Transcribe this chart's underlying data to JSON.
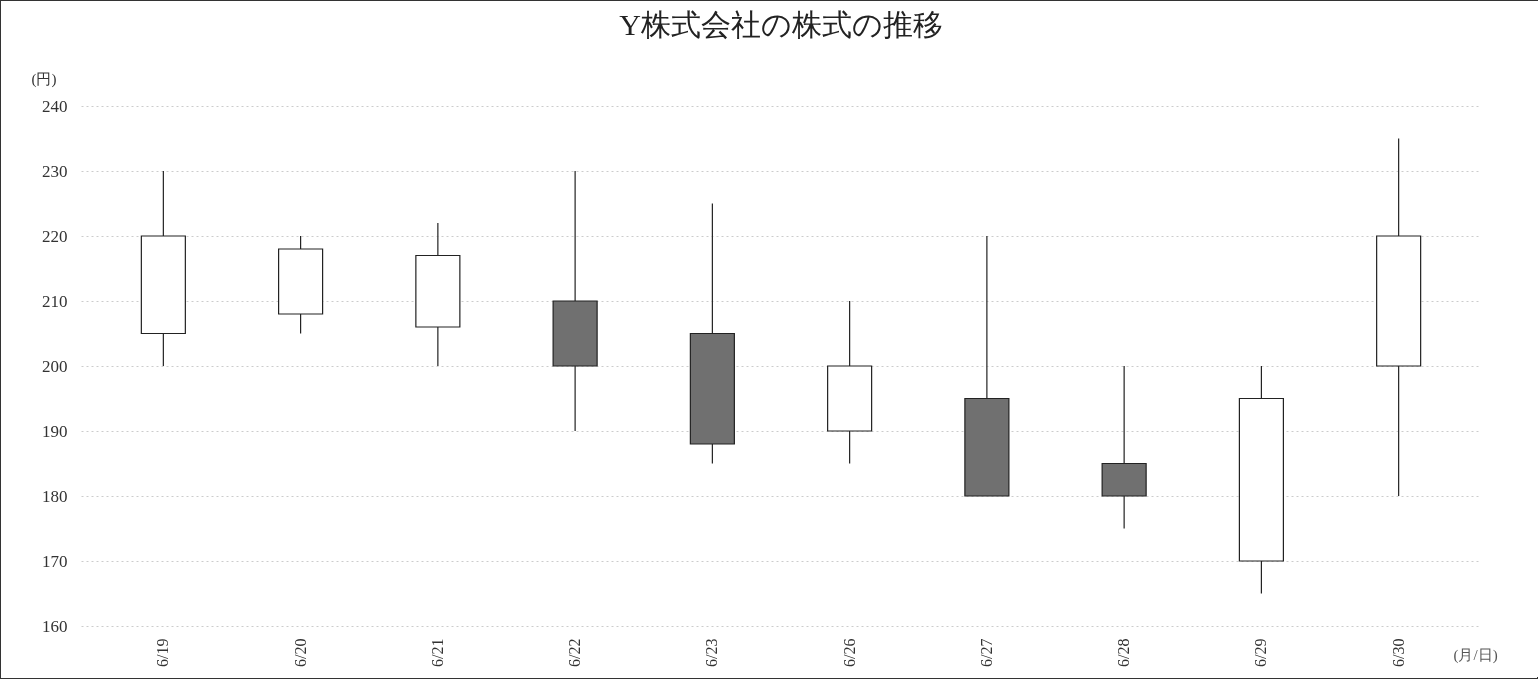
{
  "chart_data": {
    "type": "candlestick",
    "title": "Y株式会社の株式の推移",
    "ylabel": "(円)",
    "xlabel": "(月/日)",
    "categories": [
      "6/19",
      "6/20",
      "6/21",
      "6/22",
      "6/23",
      "6/26",
      "6/27",
      "6/28",
      "6/29",
      "6/30"
    ],
    "ohlc": [
      [
        205,
        230,
        200,
        220
      ],
      [
        208,
        220,
        205,
        218
      ],
      [
        206,
        222,
        200,
        217
      ],
      [
        210,
        230,
        190,
        200
      ],
      [
        205,
        225,
        185,
        188
      ],
      [
        190,
        210,
        185,
        200
      ],
      [
        195,
        220,
        180,
        180
      ],
      [
        185,
        200,
        175,
        180
      ],
      [
        170,
        200,
        165,
        195
      ],
      [
        200,
        235,
        180,
        220
      ]
    ],
    "colors": [
      "#ffffff",
      "#ffffff",
      "#ffffff",
      "#707070",
      "#707070",
      "#ffffff",
      "#707070",
      "#707070",
      "#ffffff",
      "#ffffff"
    ],
    "ylim": [
      160,
      240
    ],
    "yticks": [
      160,
      170,
      180,
      190,
      200,
      210,
      220,
      230,
      240
    ],
    "grid": "y"
  }
}
